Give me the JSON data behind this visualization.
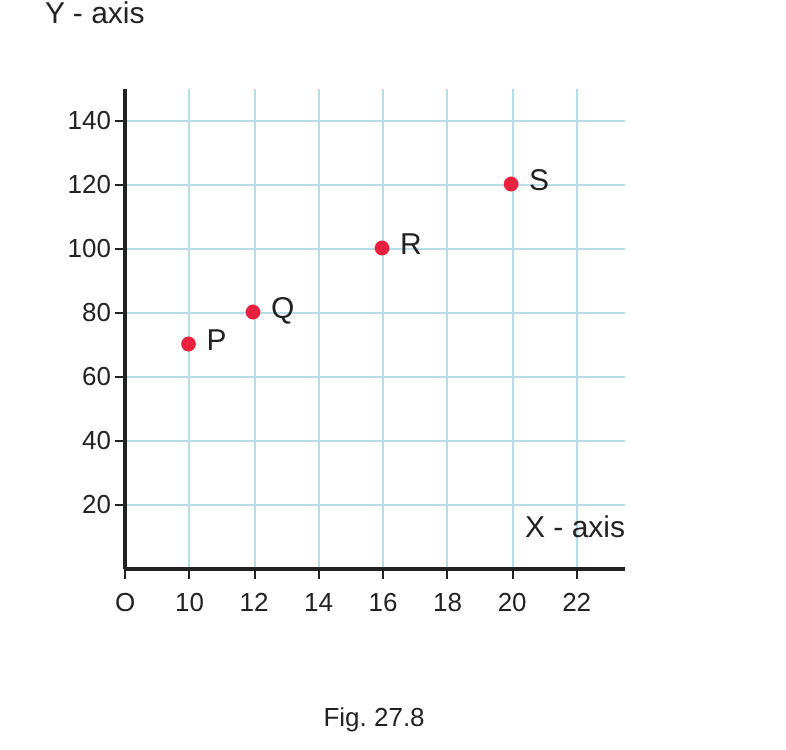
{
  "chart_data": {
    "type": "scatter",
    "title": "Fig. 27.8",
    "xlabel": "X - axis",
    "ylabel": "Y - axis",
    "x": [
      10,
      12,
      16,
      20
    ],
    "series": [
      {
        "color": "#e8213f",
        "values": [
          70,
          80,
          100,
          120
        ]
      }
    ],
    "xlim": [
      8,
      23.5
    ],
    "xticks": [
      {
        "value": 8,
        "label": "O"
      },
      10,
      12,
      14,
      16,
      18,
      20,
      22
    ],
    "ylim": [
      0,
      150
    ],
    "yticks": [
      20,
      40,
      60,
      80,
      100,
      120,
      140
    ],
    "grid": true,
    "marker": "circle",
    "annotations": [
      {
        "text": "P",
        "x": 10,
        "y": 70
      },
      {
        "text": "Q",
        "x": 12,
        "y": 80
      },
      {
        "text": "R",
        "x": 16,
        "y": 100
      },
      {
        "text": "S",
        "x": 20,
        "y": 120
      }
    ]
  }
}
